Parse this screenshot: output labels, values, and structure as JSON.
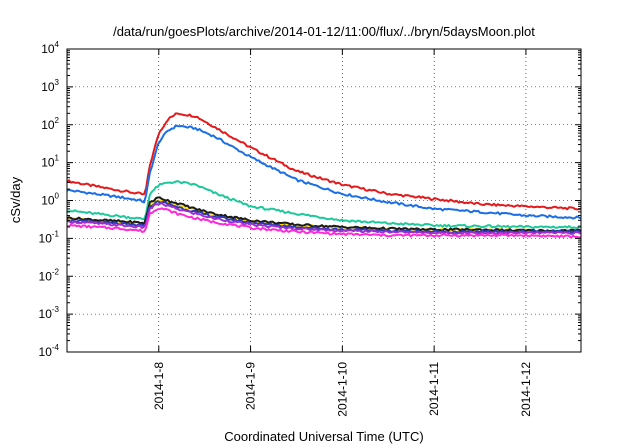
{
  "chart_data": {
    "type": "line",
    "title": "/data/run/goesPlots/archive/2014-01-12/11:00/flux/../bryn/5daysMoon.plot",
    "xlabel": "Coordinated Universal Time (UTC)",
    "ylabel": "cSv/day",
    "yscale": "log",
    "xlim": [
      0.0,
      5.6
    ],
    "ylim": [
      0.0001,
      10000
    ],
    "grid": true,
    "x_ticks": [
      {
        "x": 1.0,
        "label": "2014-1-8"
      },
      {
        "x": 2.0,
        "label": "2014-1-9"
      },
      {
        "x": 3.0,
        "label": "2014-1-10"
      },
      {
        "x": 4.0,
        "label": "2014-1-11"
      },
      {
        "x": 5.0,
        "label": "2014-1-12"
      }
    ],
    "y_ticks": [
      {
        "value": 0.0001,
        "base": "10",
        "exp": "-4"
      },
      {
        "value": 0.001,
        "base": "10",
        "exp": "-3"
      },
      {
        "value": 0.01,
        "base": "10",
        "exp": "-2"
      },
      {
        "value": 0.1,
        "base": "10",
        "exp": "-1"
      },
      {
        "value": 1,
        "base": "10",
        "exp": "0"
      },
      {
        "value": 10,
        "base": "10",
        "exp": "1"
      },
      {
        "value": 100,
        "base": "10",
        "exp": "2"
      },
      {
        "value": 1000,
        "base": "10",
        "exp": "3"
      },
      {
        "value": 10000,
        "base": "10",
        "exp": "4"
      }
    ],
    "x": [
      0.0,
      0.3,
      0.6,
      0.8,
      0.85,
      0.9,
      1.0,
      1.1,
      1.2,
      1.4,
      1.6,
      2.0,
      2.5,
      3.0,
      3.5,
      4.0,
      4.5,
      5.0,
      5.6
    ],
    "series": [
      {
        "color": "#e41a1c",
        "values": [
          3.3,
          2.4,
          1.8,
          1.5,
          1.4,
          8,
          60,
          140,
          200,
          170,
          90,
          25,
          6,
          2.6,
          1.5,
          1.1,
          0.8,
          0.7,
          0.6
        ]
      },
      {
        "color": "#1c6ee6",
        "values": [
          1.9,
          1.5,
          1.2,
          1.0,
          0.9,
          5,
          35,
          70,
          95,
          80,
          50,
          14,
          3.5,
          1.5,
          0.9,
          0.6,
          0.5,
          0.4,
          0.35
        ]
      },
      {
        "color": "#1dc99a",
        "values": [
          0.55,
          0.45,
          0.38,
          0.33,
          0.32,
          1.5,
          2.5,
          3.0,
          3.1,
          2.6,
          1.6,
          0.7,
          0.45,
          0.3,
          0.25,
          0.22,
          0.21,
          0.2,
          0.2
        ]
      },
      {
        "color": "#ffe400",
        "values": [
          0.33,
          0.3,
          0.27,
          0.25,
          0.24,
          0.8,
          1.05,
          0.9,
          0.75,
          0.55,
          0.42,
          0.28,
          0.22,
          0.19,
          0.18,
          0.17,
          0.17,
          0.16,
          0.16
        ]
      },
      {
        "color": "#1a1a1a",
        "values": [
          0.35,
          0.31,
          0.28,
          0.26,
          0.25,
          0.9,
          1.2,
          1.0,
          0.85,
          0.6,
          0.45,
          0.3,
          0.23,
          0.2,
          0.18,
          0.17,
          0.17,
          0.16,
          0.16
        ]
      },
      {
        "color": "#2a3ab0",
        "values": [
          0.3,
          0.27,
          0.24,
          0.22,
          0.21,
          0.7,
          0.95,
          0.82,
          0.68,
          0.5,
          0.38,
          0.26,
          0.2,
          0.17,
          0.16,
          0.15,
          0.15,
          0.15,
          0.15
        ]
      },
      {
        "color": "#9b2fd0",
        "values": [
          0.28,
          0.25,
          0.22,
          0.2,
          0.19,
          0.6,
          0.85,
          0.72,
          0.6,
          0.45,
          0.34,
          0.23,
          0.18,
          0.16,
          0.15,
          0.14,
          0.14,
          0.14,
          0.14
        ]
      },
      {
        "color": "#ff2bd6",
        "values": [
          0.22,
          0.2,
          0.18,
          0.16,
          0.15,
          0.45,
          0.65,
          0.55,
          0.45,
          0.34,
          0.27,
          0.19,
          0.15,
          0.13,
          0.12,
          0.12,
          0.12,
          0.12,
          0.11
        ]
      }
    ]
  }
}
